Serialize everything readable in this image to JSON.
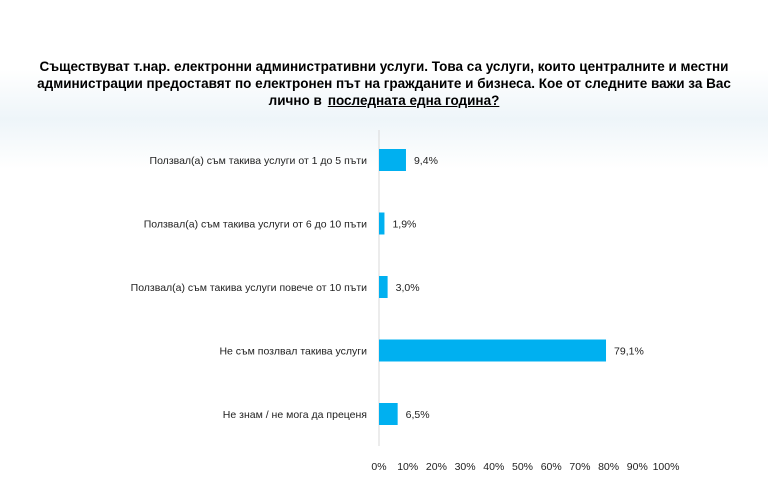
{
  "chart_data": {
    "type": "bar",
    "orientation": "horizontal",
    "title_parts": [
      "Съществуват т.нар. електронни административни услуги. Това са услуги, които централните и местни",
      "администрации предоставят по електронен път на гражданите и бизнеса. Кое от следните важи за Вас",
      "лично в",
      "последната една година?"
    ],
    "categories": [
      "Ползвал(а) съм такива услуги от 1 до 5 пъти",
      "Ползвал(а) съм такива услуги от 6 до 10 пъти",
      "Ползвал(а) съм такива услуги повече от 10 пъти",
      "Не съм позлвал такива услуги",
      "Не знам / не мога да преценя"
    ],
    "values": [
      9.4,
      1.9,
      3.0,
      79.1,
      6.5
    ],
    "value_labels": [
      "9,4%",
      "1,9%",
      "3,0%",
      "79,1%",
      "6,5%"
    ],
    "xlim": [
      0,
      100
    ],
    "x_ticks": [
      "0%",
      "10%",
      "20%",
      "30%",
      "40%",
      "50%",
      "60%",
      "70%",
      "80%",
      "90%",
      "100%"
    ],
    "bar_color": "#00b0f0",
    "grid": false
  }
}
